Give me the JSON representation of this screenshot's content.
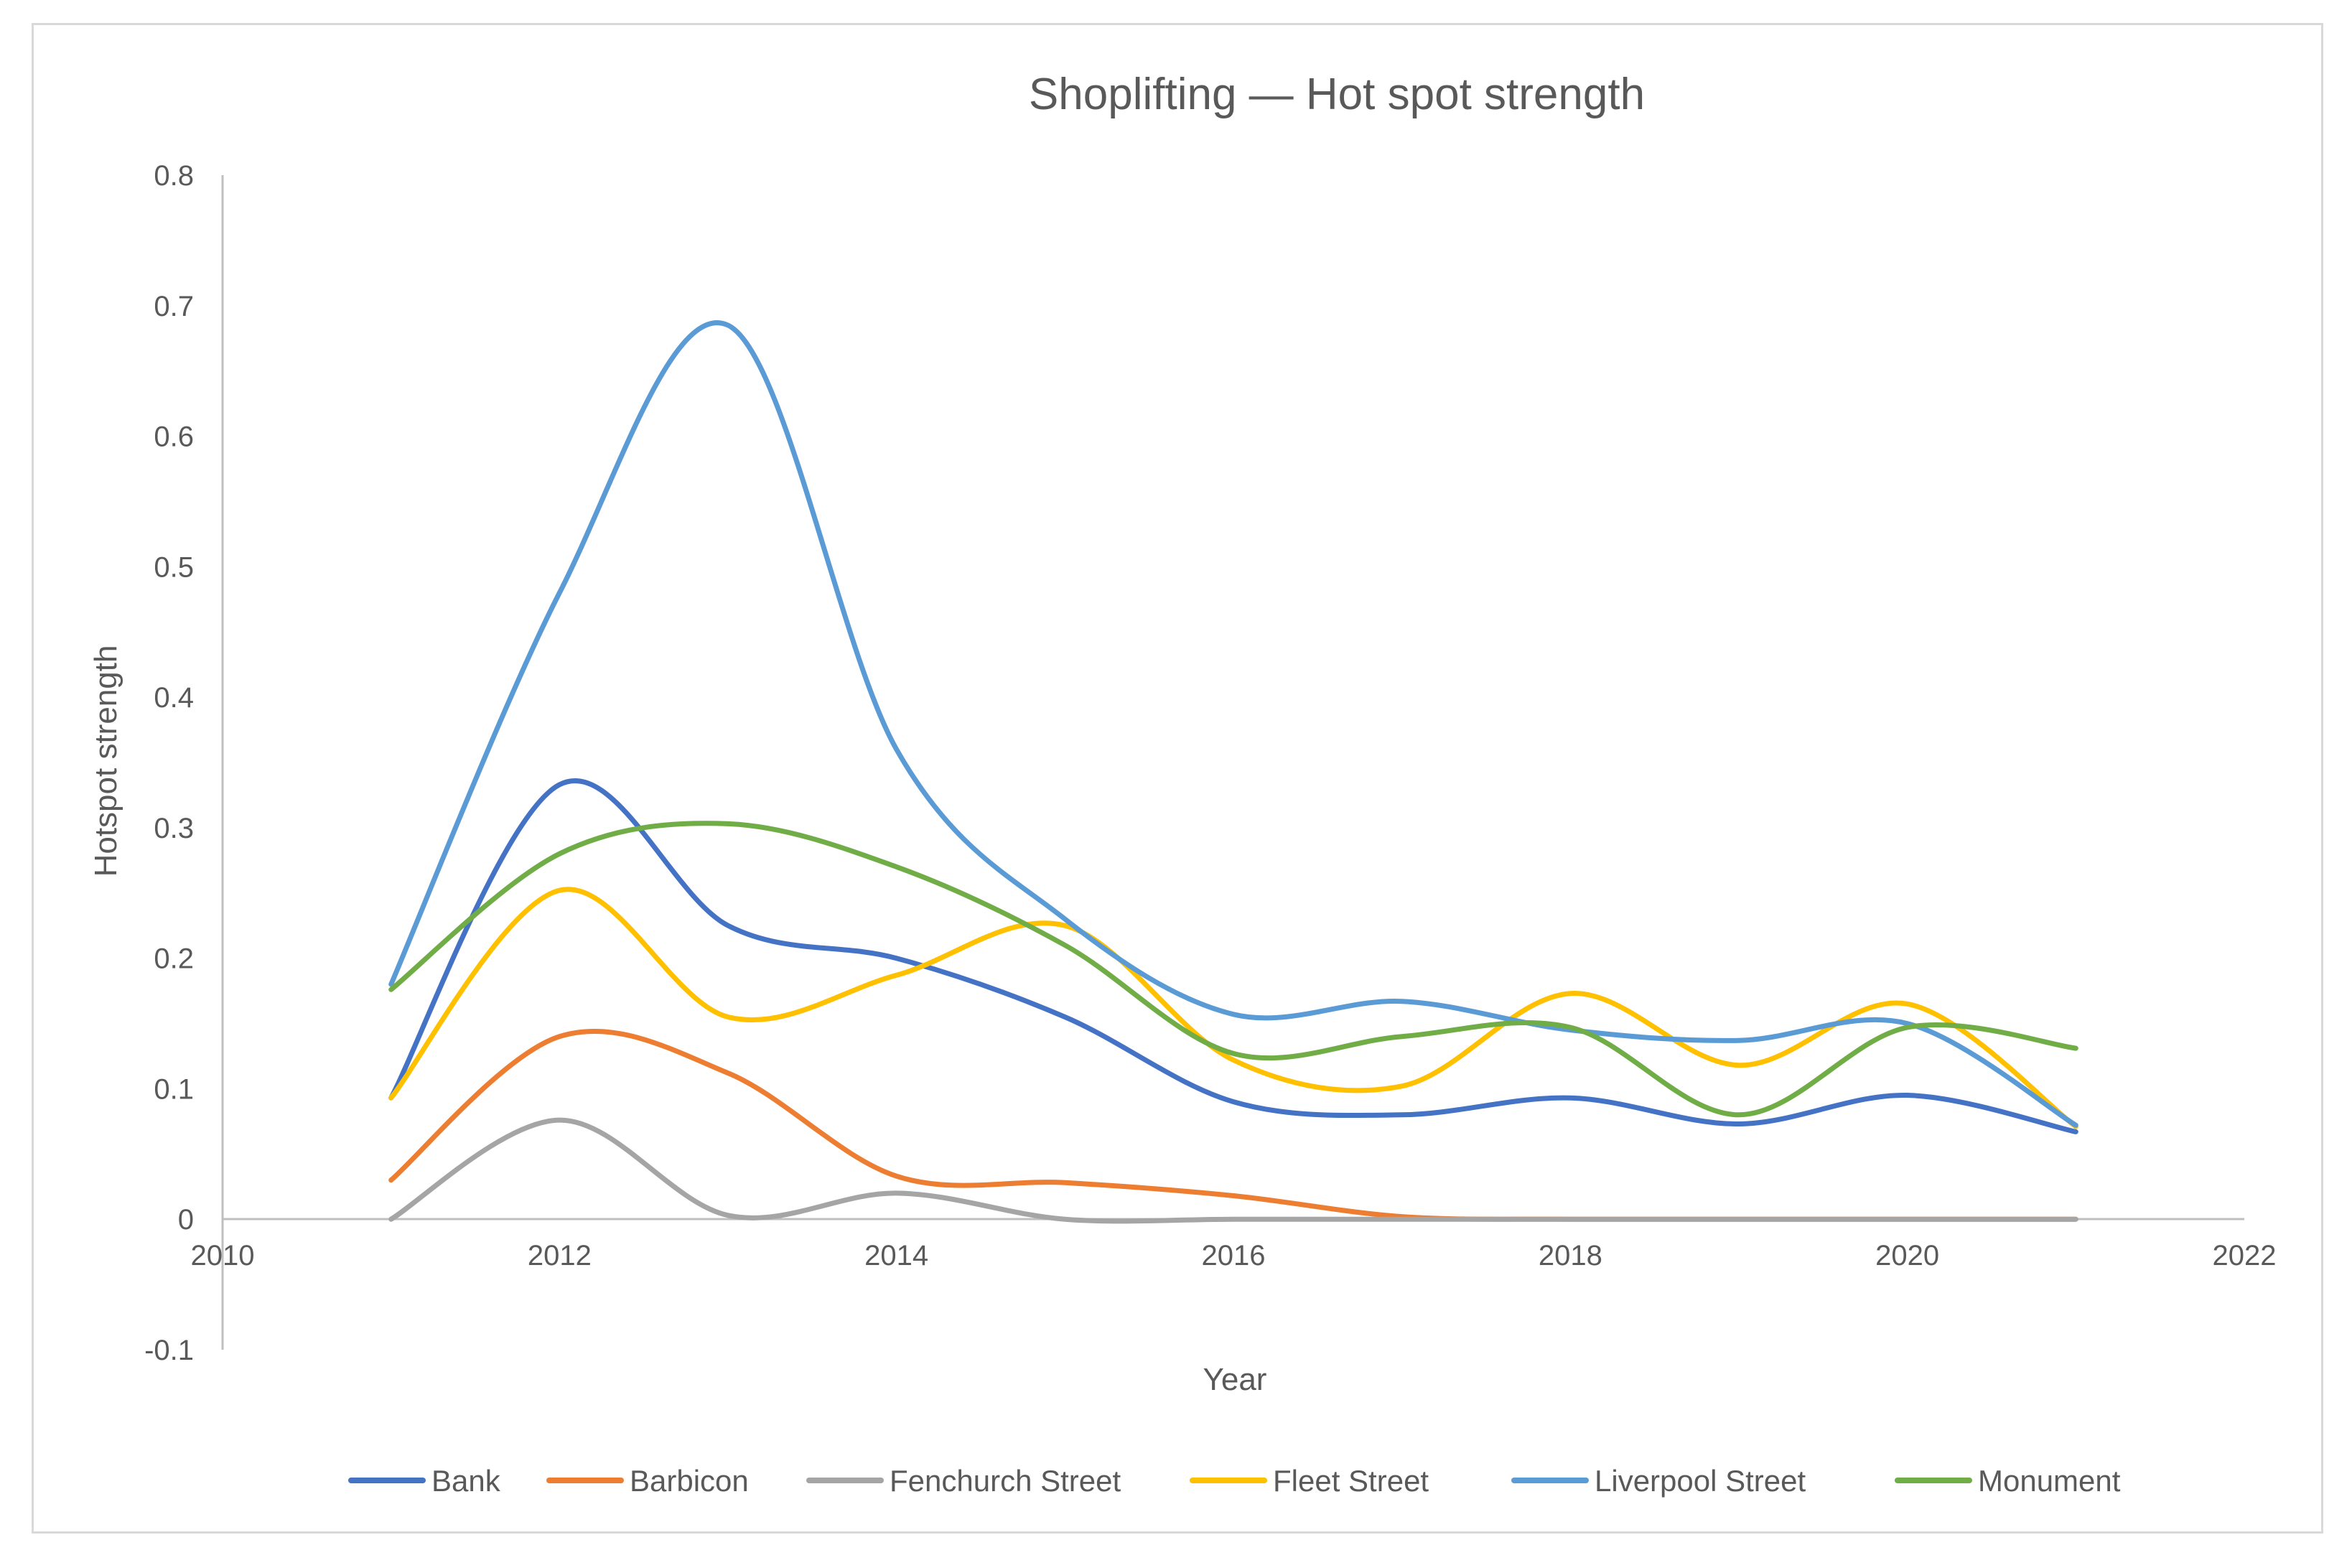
{
  "chart_data": {
    "type": "line",
    "smooth": true,
    "title": "Shoplifting — Hot spot strength",
    "xlabel": "Year",
    "ylabel": "Hotspot strength",
    "xlim": [
      2010,
      2022
    ],
    "ylim": [
      -0.1,
      0.8
    ],
    "x_ticks": [
      2010,
      2012,
      2014,
      2016,
      2018,
      2020,
      2022
    ],
    "y_ticks": [
      -0.1,
      0,
      0.1,
      0.2,
      0.3,
      0.4,
      0.5,
      0.6,
      0.7,
      0.8
    ],
    "x_tick_labels": [
      "2010",
      "2012",
      "2014",
      "2016",
      "2018",
      "2020",
      "2022"
    ],
    "y_tick_labels": [
      "-0.1",
      "0",
      "0.1",
      "0.2",
      "0.3",
      "0.4",
      "0.5",
      "0.6",
      "0.7",
      "0.8"
    ],
    "x": [
      2011,
      2012,
      2013,
      2014,
      2015,
      2016,
      2017,
      2018,
      2019,
      2020,
      2021
    ],
    "legend_position": "bottom",
    "series": [
      {
        "name": "Bank",
        "color": "#4472C4",
        "values": [
          0.093,
          0.333,
          0.225,
          0.2,
          0.155,
          0.09,
          0.08,
          0.093,
          0.073,
          0.095,
          0.067
        ]
      },
      {
        "name": "Barbicon",
        "color": "#ED7D31",
        "values": [
          0.03,
          0.14,
          0.112,
          0.033,
          0.028,
          0.018,
          0.002,
          0.0,
          0.0,
          0.0,
          0.0
        ]
      },
      {
        "name": "Fenchurch Street",
        "color": "#A5A5A5",
        "values": [
          0.0,
          0.076,
          0.003,
          0.02,
          0.0,
          0.0,
          0.0,
          0.0,
          0.0,
          0.0,
          0.0
        ]
      },
      {
        "name": "Fleet Street",
        "color": "#FFC000",
        "values": [
          0.093,
          0.252,
          0.155,
          0.187,
          0.225,
          0.122,
          0.102,
          0.173,
          0.118,
          0.165,
          0.071
        ]
      },
      {
        "name": "Liverpool Street",
        "color": "#5B9BD5",
        "values": [
          0.18,
          0.48,
          0.685,
          0.36,
          0.23,
          0.157,
          0.167,
          0.145,
          0.137,
          0.15,
          0.072
        ]
      },
      {
        "name": "Monument",
        "color": "#70AD47",
        "values": [
          0.176,
          0.28,
          0.303,
          0.27,
          0.21,
          0.127,
          0.14,
          0.147,
          0.08,
          0.147,
          0.131
        ]
      }
    ]
  }
}
